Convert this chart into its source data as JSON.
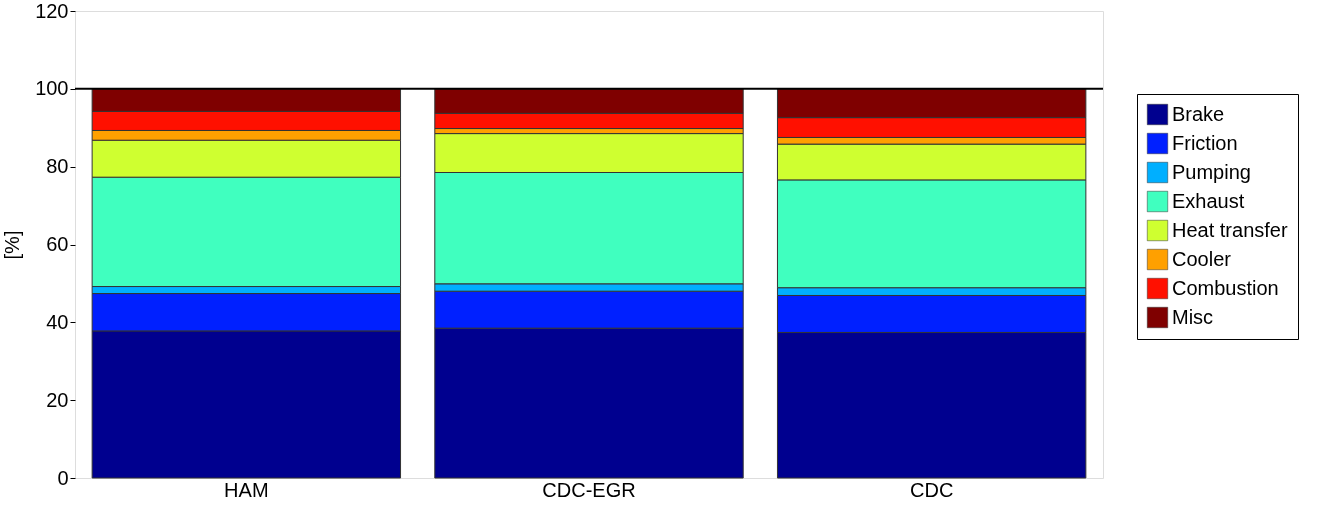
{
  "chart_data": {
    "type": "bar",
    "stacked": true,
    "ylabel": "[%]",
    "categories": [
      "HAM",
      "CDC-EGR",
      "CDC"
    ],
    "ylim": [
      0,
      120
    ],
    "yticks": [
      0,
      20,
      40,
      60,
      80,
      100,
      120
    ],
    "grid": false,
    "legend": "right",
    "series": [
      {
        "name": "Brake",
        "color": "#00008f",
        "values": [
          37.8,
          38.5,
          37.4
        ]
      },
      {
        "name": "Friction",
        "color": "#0020ff",
        "values": [
          9.6,
          9.5,
          9.5
        ]
      },
      {
        "name": "Pumping",
        "color": "#00afff",
        "values": [
          1.8,
          1.9,
          2.0
        ]
      },
      {
        "name": "Exhaust",
        "color": "#40ffbf",
        "values": [
          28.1,
          28.6,
          27.7
        ]
      },
      {
        "name": "Heat transfer",
        "color": "#cfff30",
        "values": [
          9.5,
          10.0,
          9.2
        ]
      },
      {
        "name": "Cooler",
        "color": "#ffa000",
        "values": [
          2.5,
          1.3,
          1.7
        ]
      },
      {
        "name": "Combustion",
        "color": "#ff1000",
        "values": [
          4.9,
          3.9,
          5.1
        ]
      },
      {
        "name": "Misc",
        "color": "#7f0000",
        "values": [
          5.8,
          6.3,
          7.4
        ]
      }
    ],
    "ref_lines": [
      {
        "axis": "y",
        "value": 100,
        "color": "#000000"
      }
    ]
  }
}
